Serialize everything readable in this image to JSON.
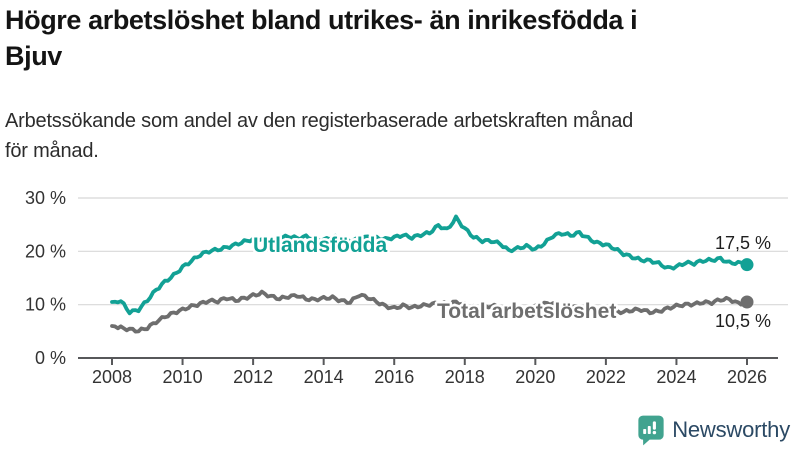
{
  "header": {
    "title_line1": "Högre arbetslöshet bland utrikes- än inrikesfödda i",
    "title_line2": "Bjuv",
    "subtitle_line1": "Arbetssökande som andel av den registerbaserade arbetskraften månad",
    "subtitle_line2": "för månad."
  },
  "chart_data": {
    "type": "line",
    "title": "Högre arbetslöshet bland utrikes- än inrikesfödda i Bjuv",
    "subtitle": "Arbetssökande som andel av den registerbaserade arbetskraften månad för månad.",
    "x": [
      2008,
      2008.25,
      2008.5,
      2008.75,
      2009,
      2009.25,
      2009.5,
      2009.75,
      2010,
      2010.25,
      2010.5,
      2010.75,
      2011,
      2011.25,
      2011.5,
      2011.75,
      2012,
      2012.25,
      2012.5,
      2012.75,
      2013,
      2013.25,
      2013.5,
      2013.75,
      2014,
      2014.25,
      2014.5,
      2014.75,
      2015,
      2015.25,
      2015.5,
      2015.75,
      2016,
      2016.25,
      2016.5,
      2016.75,
      2017,
      2017.25,
      2017.5,
      2017.75,
      2018,
      2018.25,
      2018.5,
      2018.75,
      2019,
      2019.25,
      2019.5,
      2019.75,
      2020,
      2020.25,
      2020.5,
      2020.75,
      2021,
      2021.25,
      2021.5,
      2021.75,
      2022,
      2022.25,
      2022.5,
      2022.75,
      2023,
      2023.25,
      2023.5,
      2023.75,
      2024,
      2024.25,
      2024.5,
      2024.75,
      2025,
      2025.25,
      2025.5,
      2025.75,
      2026
    ],
    "series": [
      {
        "name": "Utlandsfödda",
        "color": "#12a195",
        "end_label": "17,5 %",
        "end_value": 17.5,
        "values": [
          10.5,
          10.6,
          8.7,
          9.2,
          10.8,
          12.6,
          14.2,
          15.6,
          17.2,
          18.2,
          19.2,
          19.9,
          20.4,
          20.9,
          21.3,
          21.7,
          22.1,
          22.4,
          22.0,
          22.5,
          22.7,
          22.3,
          22.8,
          22.5,
          22.2,
          22.6,
          22.3,
          22.0,
          22.4,
          22.8,
          22.4,
          22.1,
          22.6,
          23.2,
          22.7,
          23.0,
          23.3,
          24.8,
          24.2,
          26.4,
          24.2,
          22.5,
          21.9,
          22.1,
          21.6,
          20.1,
          20.4,
          20.9,
          20.5,
          21.6,
          22.9,
          23.2,
          22.9,
          23.6,
          22.6,
          21.6,
          21.1,
          20.4,
          19.6,
          19.1,
          18.4,
          18.1,
          17.6,
          16.9,
          17.3,
          17.9,
          17.6,
          18.1,
          18.4,
          18.8,
          17.9,
          17.7,
          17.5
        ]
      },
      {
        "name": "Total arbetslöshet",
        "color": "#6e6e6e",
        "end_label": "10,5 %",
        "end_value": 10.5,
        "values": [
          6.0,
          5.8,
          5.3,
          4.9,
          5.6,
          6.9,
          7.9,
          8.4,
          8.9,
          9.6,
          10.3,
          10.9,
          10.6,
          11.1,
          10.7,
          11.3,
          11.9,
          12.2,
          11.4,
          11.0,
          11.6,
          11.9,
          11.1,
          10.8,
          11.1,
          11.4,
          10.9,
          10.5,
          11.7,
          11.2,
          10.6,
          9.9,
          9.4,
          9.7,
          9.3,
          9.8,
          10.2,
          10.4,
          10.0,
          10.3,
          10.0,
          9.7,
          9.5,
          9.7,
          9.4,
          9.2,
          9.0,
          9.3,
          9.5,
          10.0,
          10.2,
          9.9,
          9.7,
          9.5,
          9.2,
          9.0,
          8.8,
          8.9,
          8.6,
          8.8,
          9.0,
          8.7,
          8.9,
          9.3,
          9.6,
          9.9,
          10.2,
          10.6,
          10.4,
          10.8,
          10.9,
          10.3,
          10.5
        ]
      }
    ],
    "x_axis": {
      "ticks": [
        2008,
        2010,
        2012,
        2014,
        2016,
        2018,
        2020,
        2022,
        2024,
        2026
      ]
    },
    "y_axis": {
      "ticks": [
        0,
        10,
        20,
        30
      ],
      "tick_labels": [
        "0 %",
        "10 %",
        "20 %",
        "30 %"
      ],
      "range": [
        0,
        30
      ]
    },
    "grid": true,
    "legend": "inline-labels",
    "colors": {
      "gridline": "#d8d8d8",
      "axis": "#57585a",
      "tick_text": "#333333",
      "value_label_text": "#1f1f1f"
    }
  },
  "footer": {
    "brand": "Newsworthy",
    "logo_icon": "bar-chart-speech-bubble-icon",
    "logo_color": "#41a38f",
    "brand_text_color": "#2b4964"
  }
}
